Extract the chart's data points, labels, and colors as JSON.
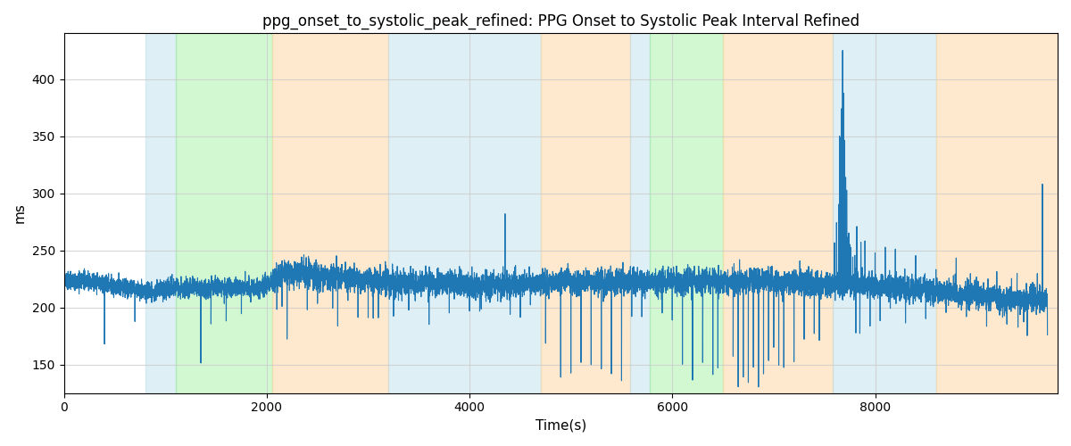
{
  "title": "ppg_onset_to_systolic_peak_refined: PPG Onset to Systolic Peak Interval Refined",
  "xlabel": "Time(s)",
  "ylabel": "ms",
  "ylim": [
    125,
    440
  ],
  "xlim": [
    0,
    9800
  ],
  "background_bands": [
    {
      "xmin": 800,
      "xmax": 1100,
      "color": "#add8e6",
      "alpha": 0.4
    },
    {
      "xmin": 1100,
      "xmax": 2050,
      "color": "#90ee90",
      "alpha": 0.4
    },
    {
      "xmin": 2050,
      "xmax": 3200,
      "color": "#ffd59e",
      "alpha": 0.5
    },
    {
      "xmin": 3200,
      "xmax": 4700,
      "color": "#add8e6",
      "alpha": 0.4
    },
    {
      "xmin": 4700,
      "xmax": 5580,
      "color": "#ffd59e",
      "alpha": 0.5
    },
    {
      "xmin": 5580,
      "xmax": 5780,
      "color": "#add8e6",
      "alpha": 0.4
    },
    {
      "xmin": 5780,
      "xmax": 6500,
      "color": "#90ee90",
      "alpha": 0.4
    },
    {
      "xmin": 6500,
      "xmax": 7580,
      "color": "#ffd59e",
      "alpha": 0.5
    },
    {
      "xmin": 7580,
      "xmax": 8600,
      "color": "#add8e6",
      "alpha": 0.4
    },
    {
      "xmin": 8600,
      "xmax": 9800,
      "color": "#ffd59e",
      "alpha": 0.5
    }
  ],
  "line_color": "#1f77b4",
  "line_width": 0.8,
  "title_fontsize": 12,
  "axis_fontsize": 11,
  "grid_color": "#cccccc",
  "grid_alpha": 0.8
}
